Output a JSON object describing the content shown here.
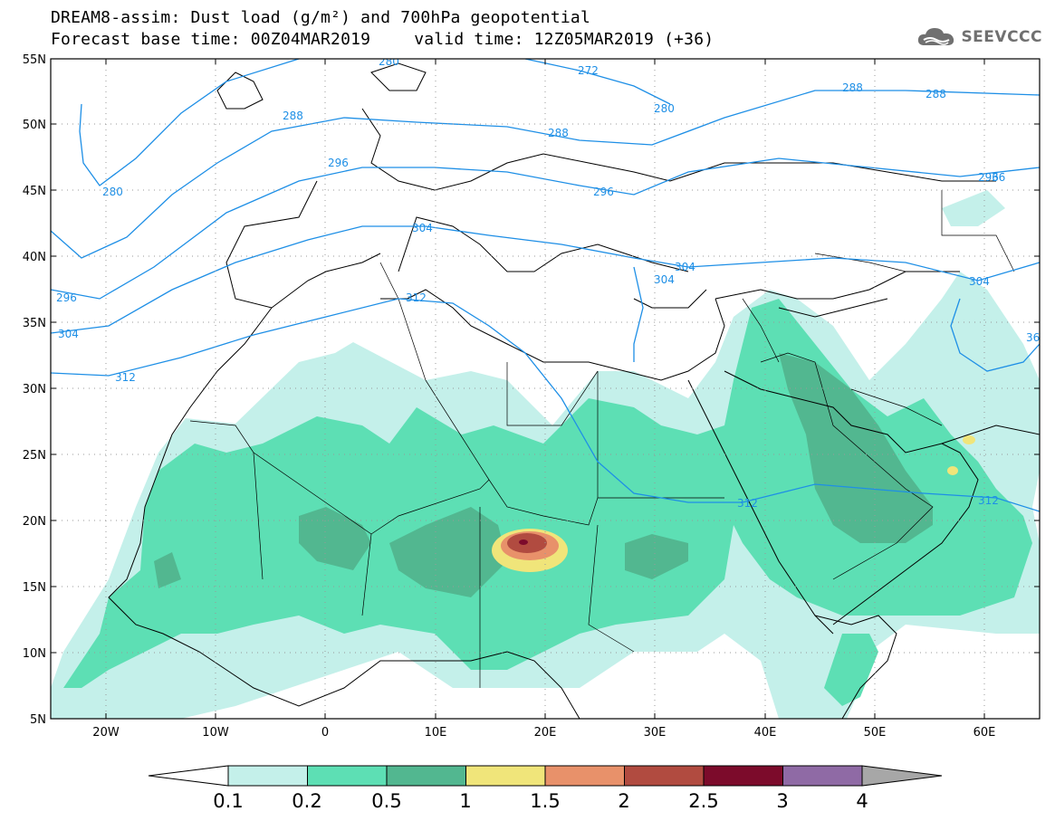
{
  "title": {
    "line1": "DREAM8-assim: Dust load (g/m²) and 700hPa geopotential",
    "base_time": "Forecast base time: 00Z04MAR2019",
    "valid_time": "valid time: 12Z05MAR2019 (+36)"
  },
  "logo": {
    "icon": "cloud-icon",
    "text": "SEEVCCC"
  },
  "map": {
    "lon_range": [
      -25,
      65
    ],
    "lat_range": [
      5,
      55
    ],
    "lat_labels": [
      "5N",
      "10N",
      "15N",
      "20N",
      "25N",
      "30N",
      "35N",
      "40N",
      "45N",
      "50N",
      "55N"
    ],
    "lon_labels": [
      "20W",
      "10W",
      "0",
      "10E",
      "20E",
      "30E",
      "40E",
      "50E",
      "60E"
    ],
    "contour_labels": [
      "280",
      "272",
      "288",
      "280",
      "288",
      "280",
      "288",
      "296",
      "296",
      "296",
      "288",
      "304",
      "304",
      "304",
      "304",
      "296",
      "312",
      "304",
      "312",
      "312",
      "312",
      "36",
      "36"
    ]
  },
  "colorbar": {
    "labels": [
      "0.1",
      "0.2",
      "0.5",
      "1",
      "1.5",
      "2",
      "2.5",
      "3",
      "4"
    ],
    "colors": [
      "#c4f0ea",
      "#5ddfb4",
      "#52b790",
      "#f0e57a",
      "#e8916a",
      "#b14b40",
      "#7c0b2b",
      "#8f6aa5",
      "#a7a7a7"
    ]
  },
  "colors": {
    "dust_light": "#c4f0ea",
    "dust_medium": "#5ddfb4",
    "dust_dark": "#52b790",
    "contour": "#1e8fe6"
  }
}
